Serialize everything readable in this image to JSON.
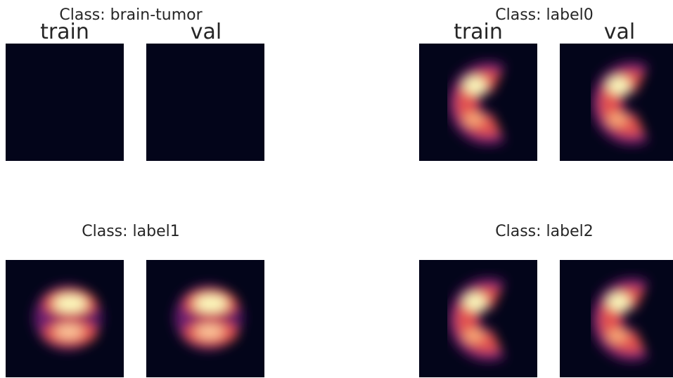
{
  "panels": [
    {
      "title": "Class: brain-tumor",
      "columns": [
        "train",
        "val"
      ]
    },
    {
      "title": "Class: label0",
      "columns": [
        "train",
        "val"
      ]
    },
    {
      "title": "Class: label1"
    },
    {
      "title": "Class: label2"
    }
  ]
}
